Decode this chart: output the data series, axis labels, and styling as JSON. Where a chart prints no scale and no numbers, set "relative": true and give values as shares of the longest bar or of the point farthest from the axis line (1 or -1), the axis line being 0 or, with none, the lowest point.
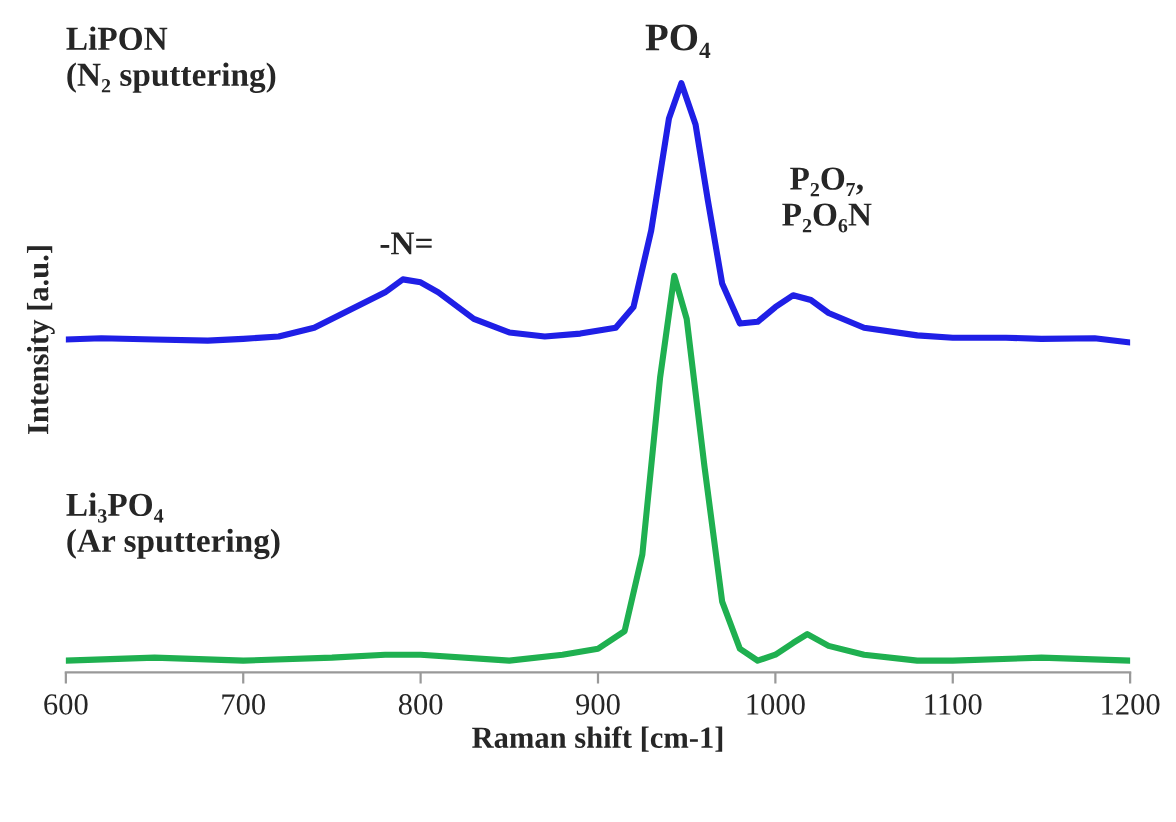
{
  "chart_data": {
    "type": "line",
    "xlabel": "Raman shift [cm-1]",
    "ylabel": "Intensity [a.u.]",
    "relative": true,
    "xlim": [
      600,
      1200
    ],
    "xticks": [
      600,
      700,
      800,
      900,
      1000,
      1100,
      1200
    ],
    "grid": false,
    "legend": false,
    "marker": "none",
    "line_style": "solid",
    "annotations": [
      "LiPON\n(N₂ sputtering)",
      "PO₄",
      "-N=",
      "P₂O₇,\nP₂O₆N",
      "Li₃PO₄\n(Ar sputtering)"
    ],
    "series": [
      {
        "color": "#1f1fe6",
        "x": [
          600,
          620,
          650,
          680,
          700,
          720,
          740,
          760,
          780,
          790,
          800,
          810,
          830,
          850,
          870,
          890,
          910,
          920,
          930,
          940,
          947,
          955,
          962,
          970,
          980,
          990,
          1000,
          1010,
          1020,
          1030,
          1050,
          1080,
          1100,
          1130,
          1150,
          1180,
          1200
        ],
        "values": [
          0.565,
          0.567,
          0.565,
          0.563,
          0.566,
          0.57,
          0.585,
          0.615,
          0.645,
          0.667,
          0.662,
          0.645,
          0.6,
          0.577,
          0.57,
          0.575,
          0.585,
          0.62,
          0.75,
          0.94,
          1.0,
          0.93,
          0.8,
          0.66,
          0.592,
          0.595,
          0.62,
          0.64,
          0.632,
          0.61,
          0.585,
          0.572,
          0.568,
          0.568,
          0.566,
          0.567,
          0.56
        ]
      },
      {
        "color": "#1fb050",
        "x": [
          600,
          650,
          700,
          750,
          780,
          800,
          850,
          880,
          900,
          915,
          925,
          935,
          943,
          950,
          960,
          970,
          980,
          990,
          1000,
          1010,
          1018,
          1030,
          1050,
          1080,
          1100,
          1150,
          1200
        ],
        "values": [
          0.02,
          0.025,
          0.02,
          0.025,
          0.03,
          0.03,
          0.02,
          0.03,
          0.04,
          0.07,
          0.2,
          0.5,
          0.673,
          0.6,
          0.35,
          0.12,
          0.04,
          0.02,
          0.03,
          0.05,
          0.065,
          0.045,
          0.03,
          0.02,
          0.02,
          0.025,
          0.02
        ]
      }
    ]
  }
}
